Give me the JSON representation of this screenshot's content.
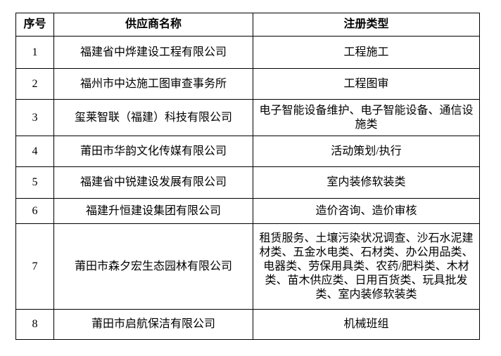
{
  "colors": {
    "border": "#000000",
    "text": "#000000",
    "background": "#ffffff"
  },
  "table": {
    "headers": [
      "序号",
      "供应商名称",
      "注册类型"
    ],
    "rows": [
      {
        "no": "1",
        "supplier": "福建省中烨建设工程有限公司",
        "type": "工程施工"
      },
      {
        "no": "2",
        "supplier": "福州市中达施工图审查事务所",
        "type": "工程图审"
      },
      {
        "no": "3",
        "supplier": "玺莱智联（福建）科技有限公司",
        "type": "电子智能设备维护、电子智能设备、通信设施类"
      },
      {
        "no": "4",
        "supplier": "莆田市华韵文化传媒有限公司",
        "type": "活动策划/执行"
      },
      {
        "no": "5",
        "supplier": "福建省中锐建设发展有限公司",
        "type": "室内装修软装类"
      },
      {
        "no": "6",
        "supplier": "福建升恒建设集团有限公司",
        "type": "造价咨询、造价审核"
      },
      {
        "no": "7",
        "supplier": "莆田市森夕宏生态园林有限公司",
        "type": "租赁服务、土壤污染状况调查、沙石水泥建材类、五金水电类、石材类、办公用品类、电器类、劳保用具类、农药/肥料类、木材类、苗木供应类、日用百货类、玩具批发类、室内装修软装类"
      },
      {
        "no": "8",
        "supplier": "莆田市启航保洁有限公司",
        "type": "机械班组"
      }
    ]
  }
}
